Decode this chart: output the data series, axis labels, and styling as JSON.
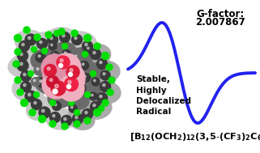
{
  "background_color": "#ffffff",
  "epr_color": "#2222ee",
  "epr_linewidth": 2.8,
  "gfactor_label": "G-factor:",
  "gfactor_value": "2.007867",
  "stable_text": [
    "Stable,",
    "Highly",
    "Delocalized",
    "Radical"
  ],
  "dark_gray": "#3a3a3a",
  "med_gray": "#6a6a6a",
  "light_gray": "#aaaaaa",
  "very_light_gray": "#c8c8c8",
  "green": "#00dd00",
  "pink_light": "#f0b0c0",
  "pink_med": "#e090a8",
  "red_atom": "#cc2040",
  "white": "#ffffff"
}
